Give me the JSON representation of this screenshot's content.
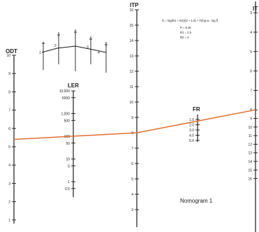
{
  "colors": {
    "ink": "#1a1a1a",
    "line": "#e36f2c",
    "paper": "#ffffff"
  },
  "scales": {
    "odt": {
      "title": "ODT",
      "ticks": [
        {
          "label": "10",
          "v": 10
        },
        {
          "label": "9",
          "v": 9
        },
        {
          "label": "8",
          "v": 8
        },
        {
          "label": "7",
          "v": 7
        },
        {
          "label": "6",
          "v": 6
        },
        {
          "label": "5",
          "v": 5
        },
        {
          "label": "4",
          "v": 4
        },
        {
          "label": "3",
          "v": 3
        },
        {
          "label": "2",
          "v": 2
        },
        {
          "label": "1",
          "v": 1
        }
      ]
    },
    "ler": {
      "title": "LER",
      "ticks": [
        {
          "label": "10,000",
          "v": 10000
        },
        {
          "label": "5000",
          "v": 5000
        },
        {
          "label": "1,000",
          "v": 1000
        },
        {
          "label": "500",
          "v": 500
        },
        {
          "label": "100",
          "v": 100
        },
        {
          "label": "50",
          "v": 50
        },
        {
          "label": "10",
          "v": 10
        },
        {
          "label": "5",
          "v": 5
        },
        {
          "label": "1",
          "v": 1
        },
        {
          "label": "0.5",
          "v": 0.5
        }
      ]
    },
    "itp": {
      "title": "ITP",
      "ticks": [
        {
          "label": "16",
          "v": 16
        },
        {
          "label": "15",
          "v": 15
        },
        {
          "label": "14",
          "v": 14
        },
        {
          "label": "13",
          "v": 13
        },
        {
          "label": "12",
          "v": 12
        },
        {
          "label": "11",
          "v": 11
        },
        {
          "label": "10",
          "v": 10
        },
        {
          "label": "9",
          "v": 9
        },
        {
          "label": "8",
          "v": 8
        },
        {
          "label": "7",
          "v": 7
        },
        {
          "label": "6",
          "v": 6
        },
        {
          "label": "5",
          "v": 5
        },
        {
          "label": "4",
          "v": 4
        },
        {
          "label": "3",
          "v": 3
        }
      ]
    },
    "fr": {
      "title": "FR",
      "ticks": [
        {
          "label": "1.0",
          "v": 1.0
        },
        {
          "label": "2.0",
          "v": 2.0
        },
        {
          "label": "3.0",
          "v": 3.0
        },
        {
          "label": "4.0",
          "v": 4.0
        },
        {
          "label": "5.0",
          "v": 5.0
        }
      ]
    },
    "right": {
      "title": "IT",
      "ticks": [
        {
          "label": "3",
          "v": 3
        },
        {
          "label": "4",
          "v": 4
        },
        {
          "label": "5",
          "v": 5
        },
        {
          "label": "6",
          "v": 6
        },
        {
          "label": "7",
          "v": 7
        },
        {
          "label": "8",
          "v": 8
        },
        {
          "label": "9",
          "v": 9
        },
        {
          "label": "10",
          "v": 10
        },
        {
          "label": "11",
          "v": 11
        },
        {
          "label": "12",
          "v": 12
        },
        {
          "label": "13",
          "v": 13
        },
        {
          "label": "14",
          "v": 14
        },
        {
          "label": "15",
          "v": 15
        },
        {
          "label": "16",
          "v": 16
        }
      ]
    }
  },
  "inset_labels": [
    "1",
    "2",
    "3",
    "4"
  ],
  "formula": {
    "line1": "G = log(R1 + R2)/(2 + 1.5) + F(log w - log f)",
    "line2": "P = 8.16",
    "line3": "R1 = 2.5",
    "line4": "R2 = 4"
  },
  "nomogram_label": "Nomogram 1",
  "isopleth": {
    "odt": 5.4,
    "itp": 8.0,
    "right": 8.0
  }
}
